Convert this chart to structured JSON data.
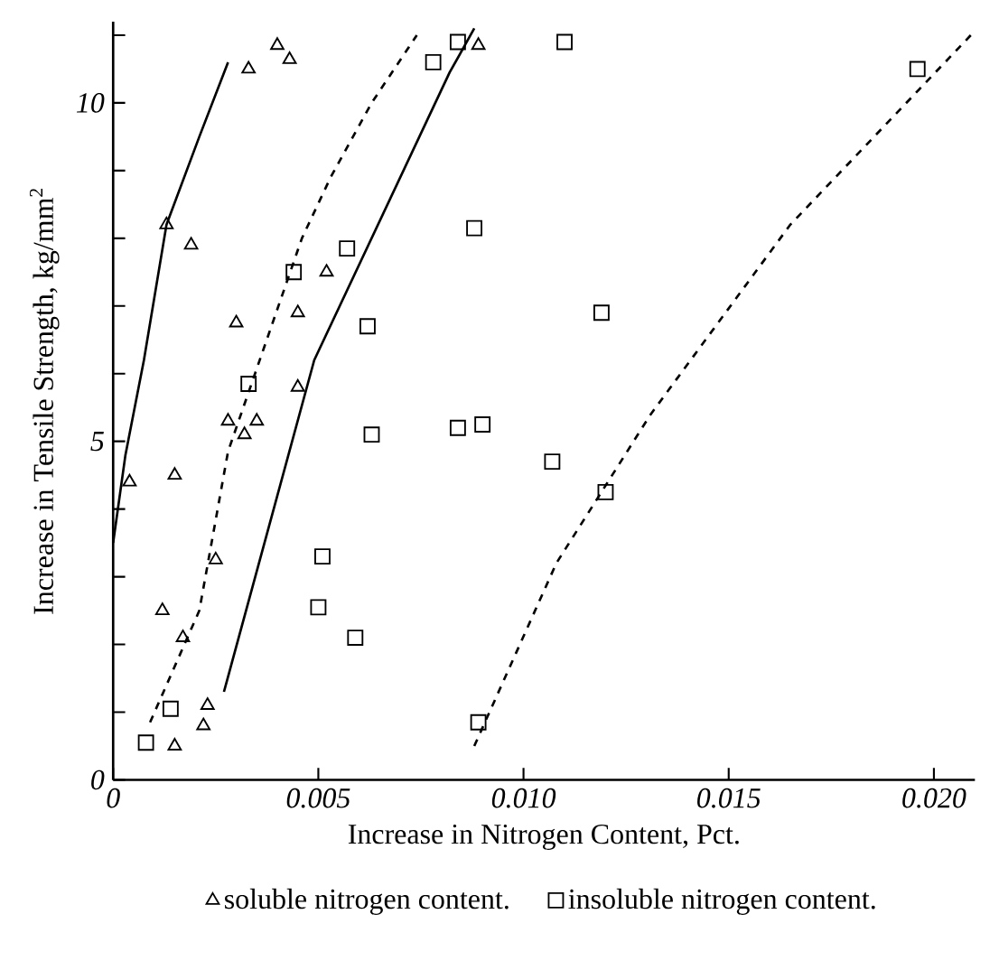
{
  "chart_data": {
    "type": "scatter",
    "xlabel": "Increase in Nitrogen Content, Pct.",
    "ylabel": "Increase in Tensile Strength, kg/mm$^{2}$",
    "xlim": [
      0,
      0.021
    ],
    "ylim": [
      0,
      11.2
    ],
    "xticks": [
      0,
      0.005,
      {
        "value": 0.01,
        "label": "0.010"
      },
      0.015,
      {
        "value": 0.02,
        "label": "0.020"
      }
    ],
    "yticks": [
      0,
      {
        "value": 1,
        "label": null
      },
      {
        "value": 2,
        "label": null
      },
      {
        "value": 3,
        "label": null
      },
      {
        "value": 4,
        "label": null
      },
      5,
      {
        "value": 6,
        "label": null
      },
      {
        "value": 7,
        "label": null
      },
      {
        "value": 8,
        "label": null
      },
      {
        "value": 9,
        "label": null
      },
      10,
      {
        "value": 11,
        "label": null
      }
    ],
    "grid": false,
    "legend": "bottom",
    "series": [
      {
        "name": "soluble nitrogen content.",
        "marker": "triangle",
        "color": "#000000",
        "x": [
          0.004,
          0.0033,
          0.0043,
          0.0013,
          0.0019,
          0.003,
          0.0045,
          0.0052,
          0.0089,
          0.0004,
          0.0015,
          0.0028,
          0.0035,
          0.0032,
          0.0045,
          0.0025,
          0.0012,
          0.0017,
          0.0023,
          0.0022,
          0.0015
        ],
        "values": [
          10.85,
          10.5,
          10.64,
          8.2,
          7.9,
          6.75,
          6.9,
          7.5,
          10.85,
          4.4,
          4.5,
          5.3,
          5.3,
          5.1,
          5.8,
          3.25,
          2.5,
          2.1,
          1.1,
          0.8,
          0.5
        ]
      },
      {
        "name": "insoluble nitrogen content.",
        "marker": "square",
        "color": "#000000",
        "x": [
          0.0084,
          0.0078,
          0.0088,
          0.0044,
          0.0057,
          0.0062,
          0.0033,
          0.0063,
          0.0084,
          0.009,
          0.0051,
          0.005,
          0.0059,
          0.0014,
          0.0008,
          0.0089,
          0.011,
          0.0196,
          0.0119,
          0.0107,
          0.012
        ],
        "values": [
          10.9,
          10.6,
          8.15,
          7.5,
          7.85,
          6.7,
          5.85,
          5.1,
          5.2,
          5.25,
          3.3,
          2.55,
          2.1,
          1.05,
          0.55,
          0.85,
          10.9,
          10.5,
          6.9,
          4.7,
          4.25
        ]
      },
      {
        "type": "line",
        "marker": "none",
        "line_style": "solid",
        "color": "#000000",
        "x": [
          0.0,
          0.0003,
          0.00075,
          0.0013,
          0.0021,
          0.0028
        ],
        "values": [
          3.5,
          4.8,
          6.2,
          8.2,
          9.5,
          10.6
        ]
      },
      {
        "type": "line",
        "marker": "none",
        "line_style": "dashed",
        "color": "#000000",
        "x": [
          0.0009,
          0.0021,
          0.0028,
          0.0046,
          0.0053,
          0.0063,
          0.0074
        ],
        "values": [
          0.85,
          2.5,
          4.85,
          8.0,
          8.9,
          10.0,
          11.0
        ]
      },
      {
        "type": "line",
        "marker": "none",
        "line_style": "solid",
        "color": "#000000",
        "x": [
          0.0027,
          0.0049,
          0.0082,
          0.0088
        ],
        "values": [
          1.3,
          6.2,
          10.45,
          11.1
        ]
      },
      {
        "type": "line",
        "marker": "none",
        "line_style": "dashed",
        "color": "#000000",
        "x": [
          0.0088,
          0.0108,
          0.0131,
          0.0165,
          0.0209
        ],
        "values": [
          0.5,
          3.2,
          5.4,
          8.2,
          11.0
        ]
      }
    ]
  }
}
